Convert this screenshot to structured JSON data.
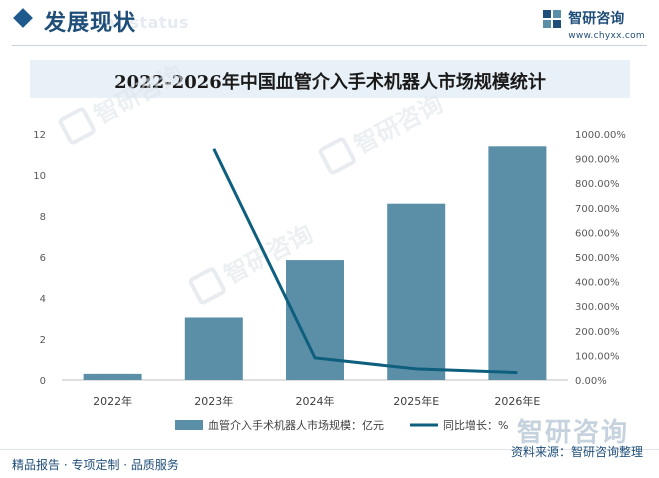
{
  "header": {
    "title": "发展现状",
    "subtitle": "ent status",
    "brand_name": "智研咨询",
    "brand_url": "www.chyxx.com"
  },
  "chart_title": "2022-2026年中国血管介入手术机器人市场规模统计",
  "chart_data": {
    "type": "bar",
    "title": "2022-2026年中国血管介入手术机器人市场规模统计",
    "categories": [
      "2022年",
      "2023年",
      "2024年",
      "2025年E",
      "2026年E"
    ],
    "series": [
      {
        "name": "血管介入手术机器人市场规模：亿元",
        "type": "bar",
        "axis": "left",
        "values": [
          0.3,
          3.05,
          5.85,
          8.6,
          11.4
        ]
      },
      {
        "name": "同比增长：%",
        "type": "line",
        "axis": "right",
        "values": [
          null,
          940,
          90,
          45,
          30
        ]
      }
    ],
    "y_left": {
      "ylim": [
        0,
        12
      ],
      "ticks": [
        "0",
        "2",
        "4",
        "6",
        "8",
        "10",
        "12"
      ]
    },
    "y_right": {
      "ylim": [
        0,
        1000
      ],
      "ticks": [
        "0.00%",
        "100.00%",
        "200.00%",
        "300.00%",
        "400.00%",
        "500.00%",
        "600.00%",
        "700.00%",
        "800.00%",
        "900.00%",
        "1000.00%"
      ]
    },
    "grid": false,
    "legend_position": "bottom",
    "colors": {
      "bar": "#5b8fa8",
      "line": "#0e5f7e"
    }
  },
  "watermarks": [
    "智研咨询",
    "智研咨询",
    "智研咨询"
  ],
  "footer": {
    "left": "精品报告 · 专项定制 · 品质服务",
    "right": "资料来源：智研咨询整理"
  }
}
